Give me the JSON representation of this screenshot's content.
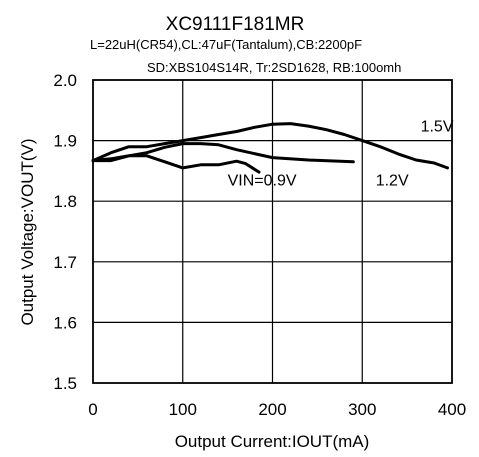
{
  "chart_data": {
    "type": "line",
    "title": "XC9111F181MR",
    "subtitle_lines": [
      "L=22uH(CR54),CL:47uF(Tantalum),CB:2200pF",
      "SD:XBS104S14R, Tr:2SD1628, RB:100omh"
    ],
    "xlabel": "Output Current:IOUT(mA)",
    "ylabel": "Output Voltage:VOUT(V)",
    "xlim": [
      0,
      400
    ],
    "ylim": [
      1.5,
      2.0
    ],
    "xticks": [
      0,
      100,
      200,
      300,
      400
    ],
    "yticks": [
      1.5,
      1.6,
      1.7,
      1.8,
      1.9,
      2.0
    ],
    "xtick_labels": [
      "0",
      "100",
      "200",
      "300",
      "400"
    ],
    "ytick_labels": [
      "1.5",
      "1.6",
      "1.7",
      "1.8",
      "1.9",
      "2.0"
    ],
    "grid": true,
    "series": [
      {
        "name": "VIN=0.9V",
        "x": [
          0,
          20,
          40,
          60,
          80,
          100,
          120,
          140,
          160,
          170,
          185
        ],
        "y": [
          1.867,
          1.867,
          1.875,
          1.875,
          1.865,
          1.855,
          1.86,
          1.86,
          1.866,
          1.862,
          1.848
        ]
      },
      {
        "name": "1.2V",
        "x": [
          0,
          20,
          40,
          60,
          80,
          100,
          120,
          140,
          160,
          200,
          240,
          290
        ],
        "y": [
          1.867,
          1.87,
          1.875,
          1.88,
          1.889,
          1.895,
          1.895,
          1.893,
          1.885,
          1.872,
          1.868,
          1.865
        ]
      },
      {
        "name": "1.5V",
        "x": [
          0,
          20,
          40,
          60,
          80,
          100,
          120,
          140,
          160,
          180,
          200,
          220,
          240,
          260,
          280,
          300,
          320,
          340,
          360,
          380,
          395
        ],
        "y": [
          1.867,
          1.88,
          1.89,
          1.89,
          1.895,
          1.9,
          1.905,
          1.91,
          1.915,
          1.922,
          1.927,
          1.928,
          1.924,
          1.918,
          1.91,
          1.9,
          1.89,
          1.878,
          1.868,
          1.863,
          1.855
        ]
      }
    ],
    "series_labels": [
      {
        "text": "1.5V",
        "x": 365,
        "y": 1.915
      },
      {
        "text": "1.2V",
        "x": 315,
        "y": 1.826
      },
      {
        "text": "VIN=0.9V",
        "x": 150,
        "y": 1.826
      }
    ],
    "colors": {
      "line": "#000000",
      "grid": "#000000"
    }
  }
}
